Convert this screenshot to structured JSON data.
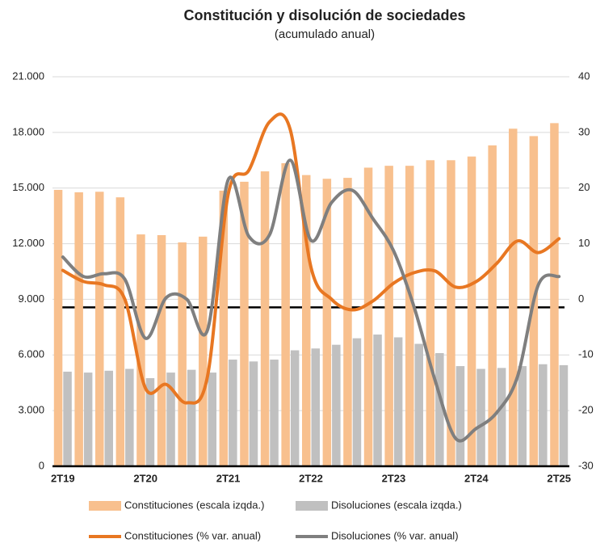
{
  "chart_data": {
    "type": "combo",
    "title": "Constitución y disolución de sociedades",
    "subtitle": "(acumulado anual)",
    "categories": [
      "2T19",
      null,
      null,
      null,
      "2T20",
      null,
      null,
      null,
      "2T21",
      null,
      null,
      null,
      "2T22",
      null,
      null,
      null,
      "2T23",
      null,
      null,
      null,
      "2T24",
      null,
      null,
      null,
      "2T25"
    ],
    "series": [
      {
        "name": "Constituciones (escala izqda.)",
        "type": "bar",
        "color": "#f8c08e",
        "values": [
          14900,
          14770,
          14800,
          14500,
          12500,
          12460,
          12070,
          12380,
          14860,
          15340,
          15900,
          16340,
          15700,
          15500,
          15550,
          16100,
          16200,
          16200,
          16500,
          16500,
          16700,
          17300,
          18200,
          17800,
          18500
        ]
      },
      {
        "name": "Disoluciones (escala izqda.)",
        "type": "bar",
        "color": "#c0c0c0",
        "values": [
          5100,
          5050,
          5150,
          5250,
          4750,
          5050,
          5200,
          5050,
          5750,
          5650,
          5750,
          6250,
          6350,
          6550,
          6900,
          7100,
          6950,
          6600,
          6100,
          5400,
          5250,
          5300,
          5400,
          5500,
          5450
        ]
      },
      {
        "name": "Constituciones (% var. anual)",
        "type": "line",
        "axis": "y2",
        "color": "#e87722",
        "values": [
          5.2,
          3.2,
          2.6,
          0,
          -16,
          -15.3,
          -18.6,
          -13.8,
          18.9,
          23.2,
          31.9,
          30.5,
          5.8,
          0,
          -1.9,
          -0.3,
          2.9,
          4.8,
          5.1,
          2.2,
          3.2,
          6.5,
          10.5,
          8.4,
          10.9
        ]
      },
      {
        "name": "Disoluciones (% var. anual)",
        "type": "line",
        "axis": "y2",
        "color": "#7f7f7f",
        "values": [
          7.6,
          4.1,
          4.6,
          3.6,
          -7,
          0.3,
          0,
          -5.5,
          21.5,
          11.3,
          11.6,
          25,
          10.6,
          17.4,
          19.6,
          14.5,
          8.7,
          -1.5,
          -14.5,
          -25,
          -23.2,
          -20.3,
          -13.8,
          2.6,
          4.1
        ]
      }
    ],
    "ylim": [
      0,
      21000
    ],
    "yticks": [
      0,
      {
        "value": 3000,
        "label": "3.000"
      },
      {
        "value": 6000,
        "label": "6.000"
      },
      {
        "value": 9000,
        "label": "9.000"
      },
      {
        "value": 12000,
        "label": "12.000"
      },
      {
        "value": 15000,
        "label": "15.000"
      },
      {
        "value": 18000,
        "label": "18.000"
      },
      {
        "value": 21000,
        "label": "21.000"
      }
    ],
    "y2lim": [
      -30,
      40
    ],
    "y2ticks": [
      -30,
      -20,
      -10,
      0,
      10,
      20,
      30,
      40
    ],
    "grid": true
  }
}
